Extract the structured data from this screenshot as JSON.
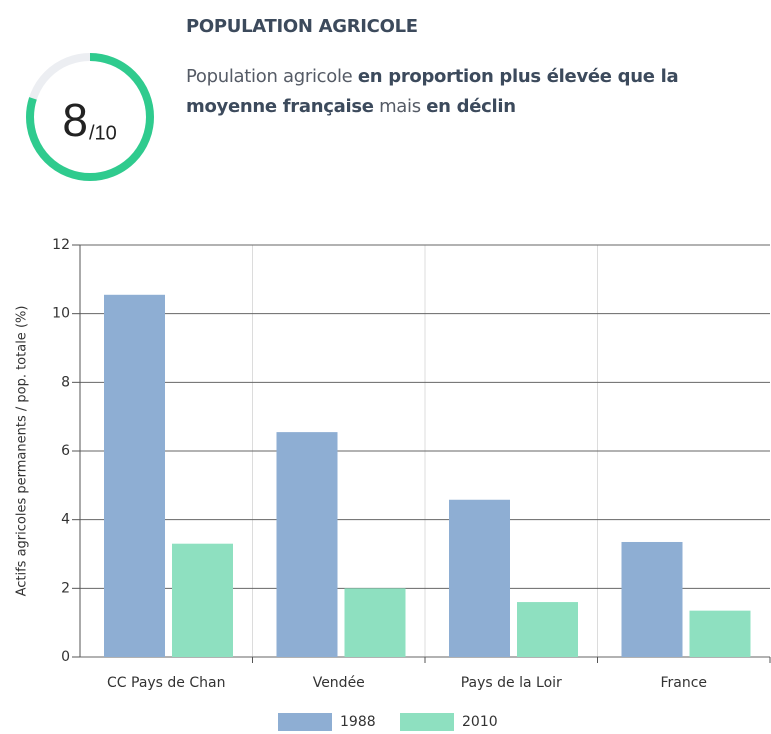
{
  "header": {
    "score": {
      "value": 8,
      "max": {
        "value": 10,
        "label": "/10"
      }
    },
    "title": "POPULATION AGRICOLE",
    "description": [
      {
        "text": "Population agricole ",
        "bold": false
      },
      {
        "text": "en proportion plus élevée que la moyenne française",
        "bold": true
      },
      {
        "text": " mais ",
        "bold": false
      },
      {
        "text": "en déclin",
        "bold": true
      }
    ]
  },
  "chart_data": {
    "type": "bar",
    "y_label": "Actifs agricoles permanents / pop. totale (%)",
    "categories": [
      "CC Pays de Chan",
      "Vendée",
      "Pays de la Loir",
      "France"
    ],
    "series": [
      {
        "name": "1988",
        "color": "#8eaed3",
        "values": [
          10.55,
          6.55,
          4.58,
          3.35
        ]
      },
      {
        "name": "2010",
        "color": "#8ee0c0",
        "values": [
          3.3,
          2.0,
          1.6,
          1.35
        ]
      }
    ],
    "ylim": [
      0,
      12
    ],
    "yticks": [
      0,
      2,
      4,
      6,
      8,
      10,
      12
    ],
    "grid": true,
    "legend": "bottom"
  }
}
